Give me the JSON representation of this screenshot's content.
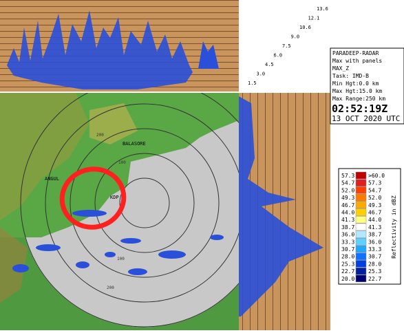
{
  "heights": [
    "13.6",
    "12.1",
    "10.6",
    "9.0",
    "7.5",
    "6.0",
    "4.5",
    "3.0",
    "1.5"
  ],
  "info": {
    "station": "PARADEEP-RADAR",
    "product": "Max with panels",
    "product_code": "MAX_Z",
    "task": "Task: IMD-B",
    "min_height": "Min Hgt:0.0 km",
    "max_height": "Max Hgt:15.0 km",
    "max_range": "Max Range:250 km",
    "time": "02:52:19Z",
    "date": "13 OCT 2020 UTC"
  },
  "legend": {
    "title": "Reflectivity in dBZ",
    "rows": [
      [
        "57.3",
        ">60.0"
      ],
      [
        "54.7",
        "57.3"
      ],
      [
        "52.0",
        "54.7"
      ],
      [
        "49.3",
        "52.0"
      ],
      [
        "46.7",
        "49.3"
      ],
      [
        "44.0",
        "46.7"
      ],
      [
        "41.3",
        "44.0"
      ],
      [
        "38.7",
        "41.3"
      ],
      [
        "36.0",
        "38.7"
      ],
      [
        "33.3",
        "36.0"
      ],
      [
        "30.7",
        "33.3"
      ],
      [
        "28.0",
        "30.7"
      ],
      [
        "25.3",
        "28.0"
      ],
      [
        "22.7",
        "25.3"
      ],
      [
        "20.0",
        "22.7"
      ]
    ],
    "colors": [
      "#c00000",
      "#e02020",
      "#ff4000",
      "#ff7a00",
      "#ffaa00",
      "#ffd000",
      "#ffff80",
      "#ffffff",
      "#b0e8ff",
      "#60d0ff",
      "#20a8ff",
      "#1070ff",
      "#0040e0",
      "#0020a0",
      "#000070"
    ]
  },
  "map": {
    "places": [
      "BALASORE",
      "KDP",
      "ANGUL"
    ],
    "ring_labels": [
      "100",
      "200",
      "100",
      "200"
    ]
  }
}
